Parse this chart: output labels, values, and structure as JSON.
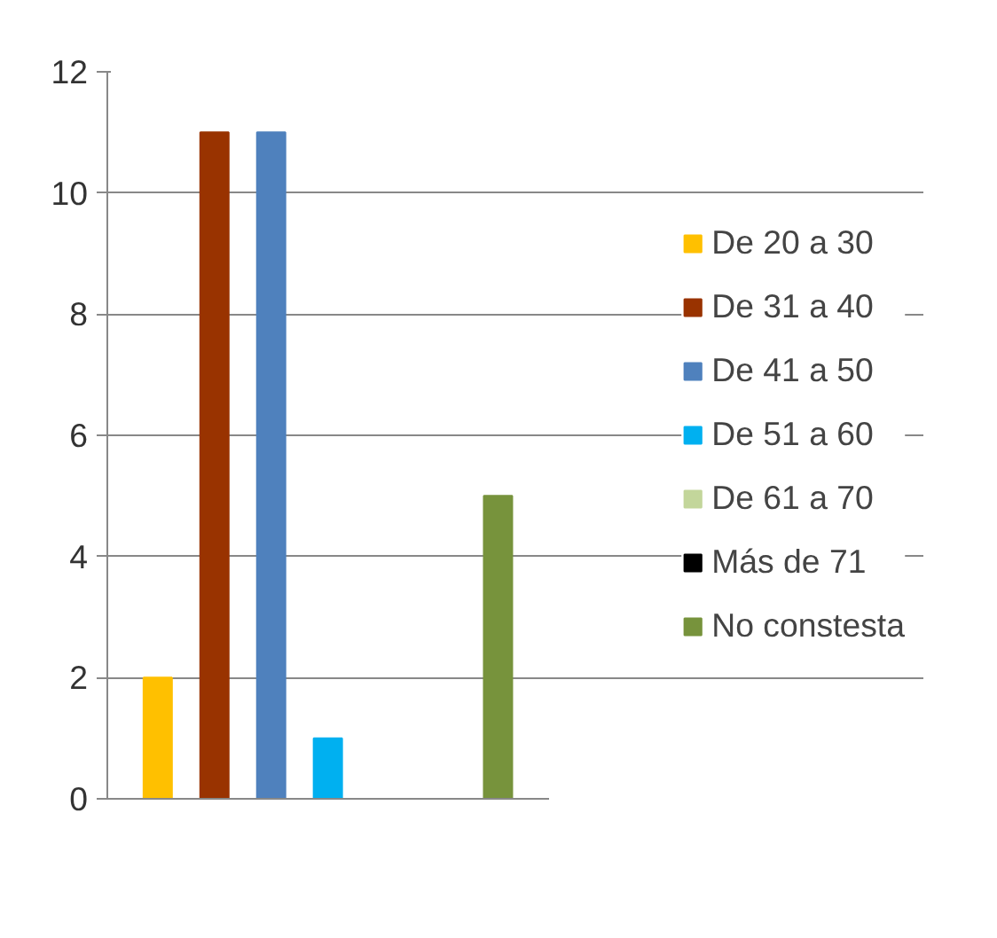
{
  "chart_data": {
    "type": "bar",
    "categories": [
      null
    ],
    "series": [
      {
        "name": "De 20 a 30",
        "color": "#ffc000",
        "values": [
          2
        ]
      },
      {
        "name": "De 31 a 40",
        "color": "#993300",
        "values": [
          11
        ]
      },
      {
        "name": "De 41 a 50",
        "color": "#4f81bd",
        "values": [
          11
        ]
      },
      {
        "name": "De 51 a 60",
        "color": "#00b0f0",
        "values": [
          1
        ]
      },
      {
        "name": "De 61 a 70",
        "color": "#c3d69b",
        "values": [
          0
        ]
      },
      {
        "name": "Más de 71",
        "color": "#000000",
        "values": [
          0
        ]
      },
      {
        "name": "No constesta",
        "color": "#77933c",
        "values": [
          5
        ]
      }
    ],
    "ylim": [
      0,
      12
    ],
    "yticks": [
      0,
      2,
      4,
      6,
      8,
      10,
      12
    ],
    "grid": "y",
    "legend": "right"
  }
}
